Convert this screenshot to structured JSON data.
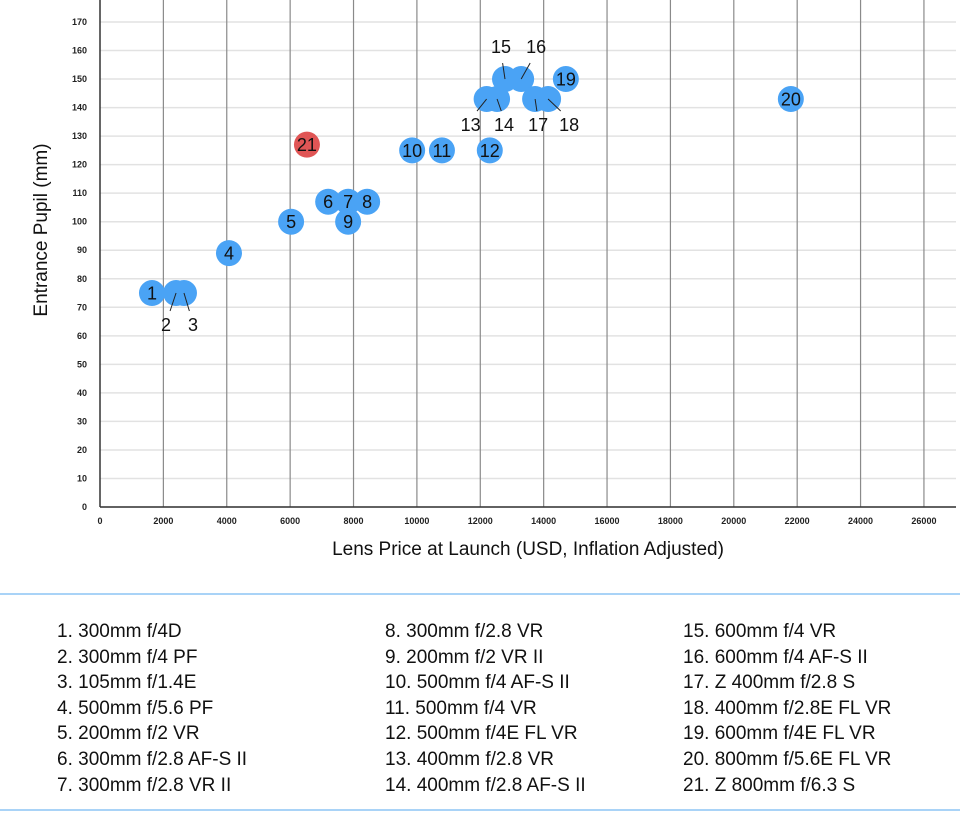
{
  "chart_data": {
    "type": "scatter",
    "title": "",
    "xlabel": "Lens Price at Launch (USD, Inflation Adjusted)",
    "ylabel": "Entrance Pupil (mm)",
    "xlim": [
      0,
      27800
    ],
    "ylim": [
      0,
      175
    ],
    "xticks": [
      0,
      2000,
      4000,
      6000,
      8000,
      10000,
      12000,
      14000,
      16000,
      18000,
      20000,
      22000,
      24000,
      26000
    ],
    "yticks": [
      0,
      10,
      20,
      30,
      40,
      50,
      60,
      70,
      80,
      90,
      100,
      110,
      120,
      130,
      140,
      150,
      160,
      170
    ],
    "grid": true,
    "colors": {
      "default": "#4aa3f5",
      "highlight": "#e05555"
    },
    "points": [
      {
        "id": "1",
        "x": 1640,
        "y": 75,
        "color": "default"
      },
      {
        "id": "2",
        "x": 2400,
        "y": 75,
        "color": "default"
      },
      {
        "id": "3",
        "x": 2650,
        "y": 75,
        "color": "default"
      },
      {
        "id": "4",
        "x": 4070,
        "y": 89,
        "color": "default"
      },
      {
        "id": "5",
        "x": 6030,
        "y": 100,
        "color": "default"
      },
      {
        "id": "6",
        "x": 7200,
        "y": 107,
        "color": "default"
      },
      {
        "id": "7",
        "x": 7830,
        "y": 107,
        "color": "default"
      },
      {
        "id": "8",
        "x": 8430,
        "y": 107,
        "color": "default"
      },
      {
        "id": "9",
        "x": 7830,
        "y": 100,
        "color": "default"
      },
      {
        "id": "10",
        "x": 9850,
        "y": 125,
        "color": "default"
      },
      {
        "id": "11",
        "x": 10790,
        "y": 125,
        "color": "default"
      },
      {
        "id": "12",
        "x": 12300,
        "y": 125,
        "color": "default"
      },
      {
        "id": "13",
        "x": 12200,
        "y": 143,
        "color": "default"
      },
      {
        "id": "14",
        "x": 12530,
        "y": 143,
        "color": "default"
      },
      {
        "id": "15",
        "x": 12780,
        "y": 150,
        "color": "default"
      },
      {
        "id": "16",
        "x": 13290,
        "y": 150,
        "color": "default"
      },
      {
        "id": "17",
        "x": 13730,
        "y": 143,
        "color": "default"
      },
      {
        "id": "18",
        "x": 14140,
        "y": 143,
        "color": "default"
      },
      {
        "id": "19",
        "x": 14700,
        "y": 150,
        "color": "default"
      },
      {
        "id": "20",
        "x": 21800,
        "y": 143,
        "color": "default"
      },
      {
        "id": "21",
        "x": 6530,
        "y": 127,
        "color": "highlight"
      }
    ]
  },
  "legend": {
    "columns": [
      [
        "1. 300mm f/4D",
        "2. 300mm f/4 PF",
        "3. 105mm f/1.4E",
        "4. 500mm f/5.6 PF",
        "5. 200mm f/2 VR",
        "6. 300mm f/2.8 AF-S II",
        "7. 300mm f/2.8 VR II"
      ],
      [
        "8. 300mm f/2.8 VR",
        "9. 200mm f/2 VR II",
        "10. 500mm f/4 AF-S II",
        "11. 500mm f/4 VR",
        "12. 500mm f/4E FL VR",
        "13. 400mm f/2.8 VR",
        "14. 400mm f/2.8 AF-S II"
      ],
      [
        "15. 600mm f/4 VR",
        "16. 600mm f/4 AF-S II",
        "17. Z 400mm f/2.8 S",
        "18. 400mm f/2.8E FL VR",
        "19. 600mm f/4E FL VR",
        "20. 800mm f/5.6E FL VR",
        "21. Z 800mm f/6.3 S"
      ]
    ]
  }
}
